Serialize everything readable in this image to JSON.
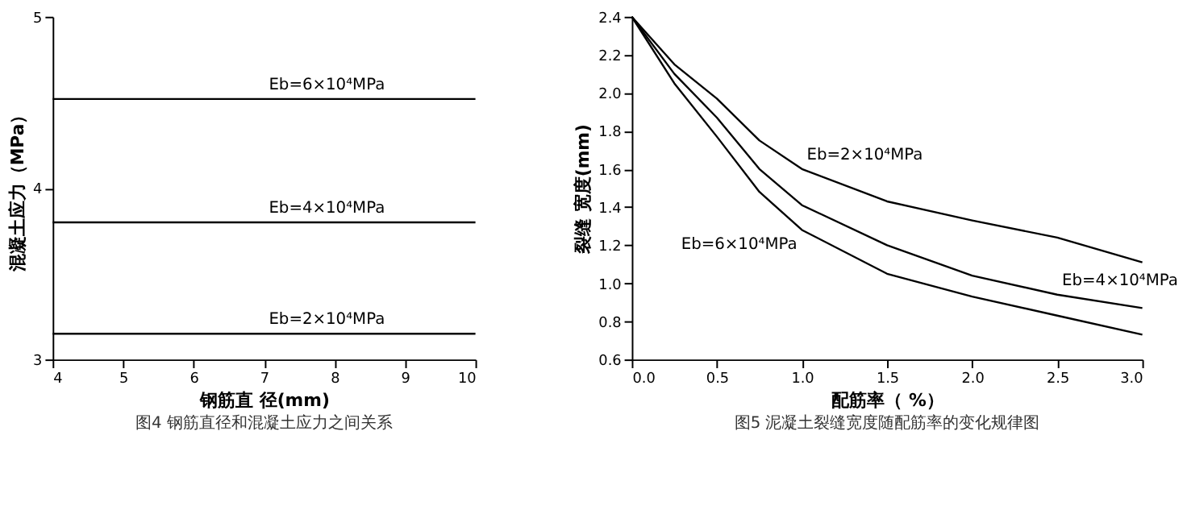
{
  "chart_data": [
    {
      "type": "line",
      "title": "图4   钢筋直径和混凝土应力之间关系",
      "xlabel": "钢筋直 径(mm)",
      "ylabel": "混凝土应力（MPa）",
      "xlim": [
        4,
        10
      ],
      "xticks": [
        4,
        5,
        6,
        7,
        8,
        9,
        10
      ],
      "ylim": [
        3,
        5
      ],
      "yticks": [
        3,
        4,
        5
      ],
      "grid": false,
      "marker": "none",
      "line_style": "solid",
      "series": [
        {
          "color": "#000000",
          "x": [
            4,
            10
          ],
          "values": [
            4.52,
            4.52
          ]
        },
        {
          "color": "#000000",
          "x": [
            4,
            10
          ],
          "values": [
            3.8,
            3.8
          ]
        },
        {
          "color": "#000000",
          "x": [
            4,
            10
          ],
          "values": [
            3.15,
            3.15
          ]
        }
      ],
      "annotations": [
        {
          "text": "Eb=6×10⁴MPa",
          "x": 7,
          "y": 4.52
        },
        {
          "text": "Eb=4×10⁴MPa",
          "x": 7,
          "y": 3.8
        },
        {
          "text": "Eb=2×10⁴MPa",
          "x": 7,
          "y": 3.15
        }
      ]
    },
    {
      "type": "line",
      "title": "图5   泥凝土裂缝宽度随配筋率的变化规律图",
      "xlabel": "配筋率（ %）",
      "ylabel": "裂缝 宽度(mm)",
      "xlim": [
        0,
        3
      ],
      "xticks": [
        {
          "value": 0,
          "label": "0.0"
        },
        {
          "value": 0.5,
          "label": "0.5"
        },
        {
          "value": 1,
          "label": "1.0"
        },
        {
          "value": 1.5,
          "label": "1.5"
        },
        {
          "value": 2,
          "label": "2.0"
        },
        {
          "value": 2.5,
          "label": "2.5"
        },
        {
          "value": 3,
          "label": "3.0"
        }
      ],
      "ylim": [
        0.6,
        2.4
      ],
      "yticks": [
        0.6,
        0.8,
        {
          "value": 1,
          "label": "1.0"
        },
        1.2,
        1.4,
        1.6,
        1.8,
        {
          "value": 2,
          "label": "2.0"
        },
        2.2,
        2.4
      ],
      "grid": false,
      "marker": "none",
      "line_style": "solid",
      "series": [
        {
          "color": "#000000",
          "x": [
            0,
            0.25,
            0.5,
            0.75,
            1,
            1.5,
            2,
            2.5,
            3
          ],
          "values": [
            2.4,
            2.15,
            1.97,
            1.75,
            1.6,
            1.43,
            1.33,
            1.24,
            1.11
          ]
        },
        {
          "color": "#000000",
          "x": [
            0,
            0.25,
            0.5,
            0.75,
            1,
            1.5,
            2,
            2.5,
            3
          ],
          "values": [
            2.4,
            2.1,
            1.87,
            1.6,
            1.41,
            1.2,
            1.04,
            0.94,
            0.87
          ]
        },
        {
          "color": "#000000",
          "x": [
            0,
            0.25,
            0.5,
            0.75,
            1,
            1.5,
            2,
            2.5,
            3
          ],
          "values": [
            2.4,
            2.05,
            1.77,
            1.48,
            1.28,
            1.05,
            0.93,
            0.83,
            0.73
          ]
        }
      ],
      "annotations": [
        {
          "text": "Eb=2×10⁴MPa",
          "x": 1,
          "y": 1.6
        },
        {
          "text": "Eb=4×10⁴MPa",
          "x": 2.5,
          "y": 0.94
        },
        {
          "text": "Eb=6×10⁴MPa",
          "x": 1,
          "y": 1.28
        }
      ]
    }
  ]
}
